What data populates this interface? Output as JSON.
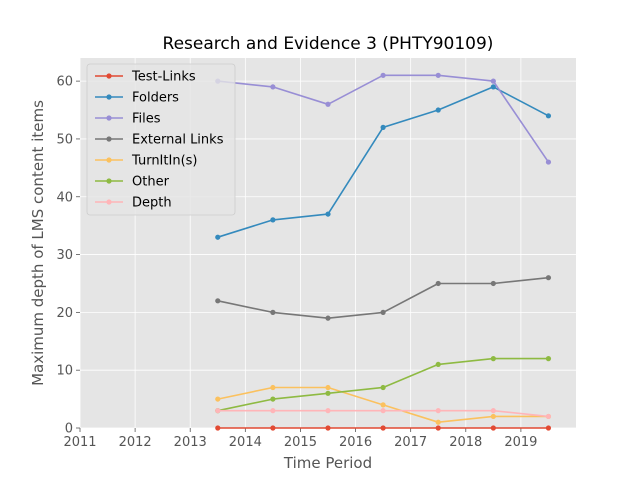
{
  "chart_data": {
    "type": "line",
    "title": "Research and Evidence 3 (PHTY90109)",
    "xlabel": "Time Period",
    "ylabel": "Maximum depth of LMS content items",
    "xlim": [
      2011,
      2020
    ],
    "ylim": [
      0,
      64
    ],
    "xticks": [
      2011,
      2012,
      2013,
      2014,
      2015,
      2016,
      2017,
      2018,
      2019
    ],
    "yticks": [
      0,
      10,
      20,
      30,
      40,
      50,
      60
    ],
    "grid": true,
    "legend_position": "upper left",
    "x": [
      2013.5,
      2014.5,
      2015.5,
      2016.5,
      2017.5,
      2018.5,
      2019.5
    ],
    "series": [
      {
        "name": "Test-Links",
        "color": "#e24a33",
        "values": [
          0,
          0,
          0,
          0,
          0,
          0,
          0
        ]
      },
      {
        "name": "Folders",
        "color": "#348abd",
        "values": [
          33,
          36,
          37,
          52,
          55,
          59,
          54
        ]
      },
      {
        "name": "Files",
        "color": "#988ed5",
        "values": [
          60,
          59,
          56,
          61,
          61,
          60,
          46
        ]
      },
      {
        "name": "External Links",
        "color": "#777777",
        "values": [
          22,
          20,
          19,
          20,
          25,
          25,
          26
        ]
      },
      {
        "name": "TurnItIn(s)",
        "color": "#fbc15e",
        "values": [
          5,
          7,
          7,
          4,
          1,
          2,
          2
        ]
      },
      {
        "name": "Other",
        "color": "#8eba42",
        "values": [
          3,
          5,
          6,
          7,
          11,
          12,
          12
        ]
      },
      {
        "name": "Depth",
        "color": "#ffb5b8",
        "values": [
          3,
          3,
          3,
          3,
          3,
          3,
          2
        ]
      }
    ]
  }
}
